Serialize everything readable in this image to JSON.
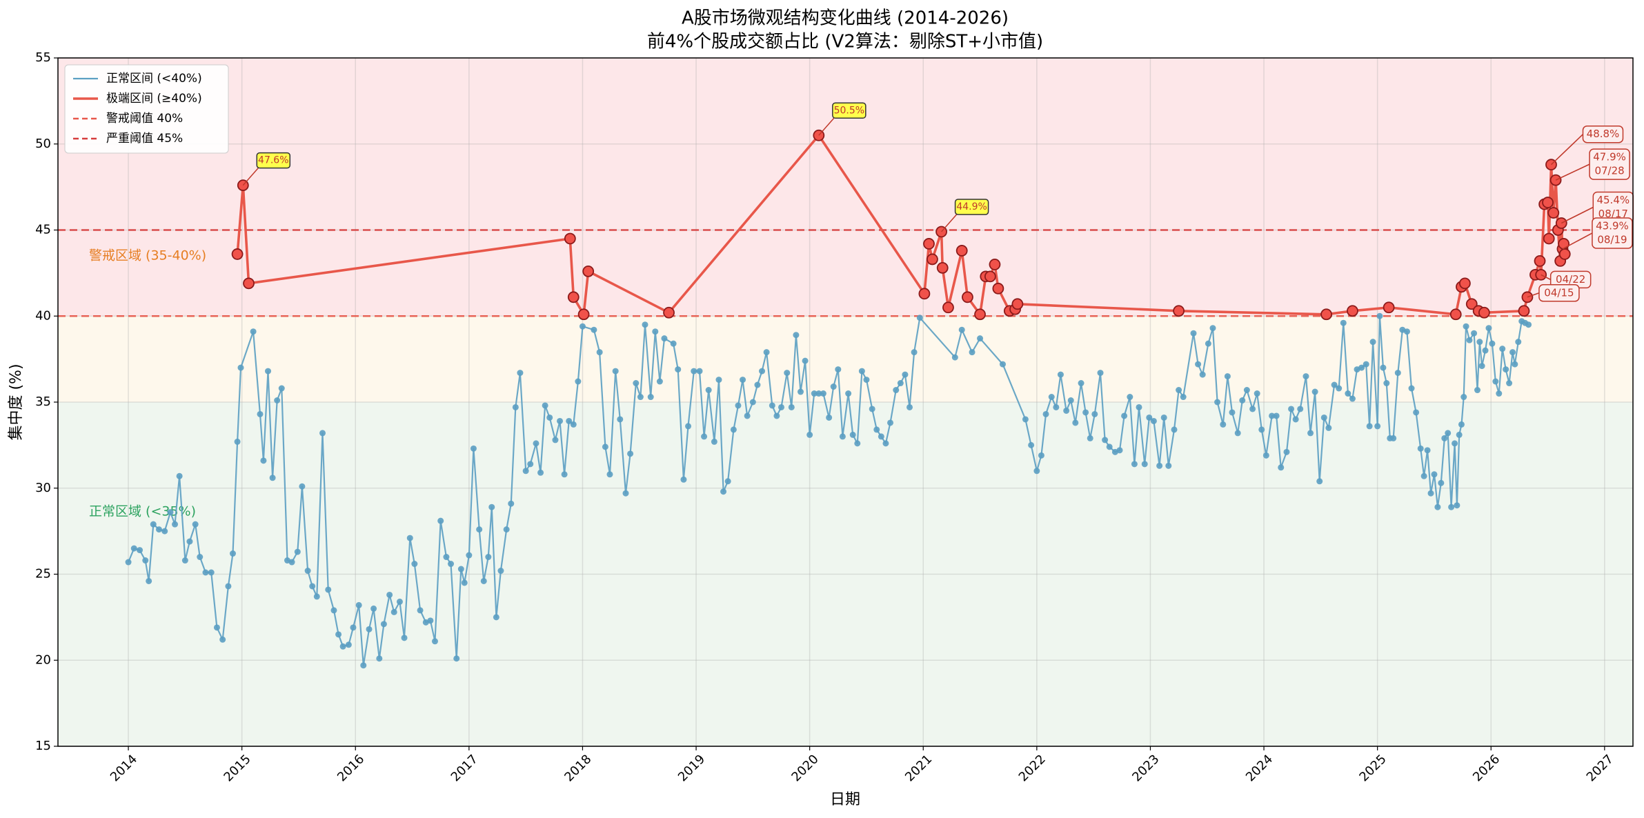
{
  "chart_data": {
    "type": "line",
    "title": "A股市场微观结构变化曲线 (2014-2026)",
    "subtitle": "前4%个股成交额占比 (V2算法：剔除ST+小市值)",
    "x_label": "日期",
    "y_label": "集中度 (%)",
    "xlim": [
      2013.38,
      2027.25
    ],
    "xticks": [
      2014,
      2015,
      2016,
      2017,
      2018,
      2019,
      2020,
      2021,
      2022,
      2023,
      2024,
      2025,
      2026,
      2027
    ],
    "ylim": [
      15,
      55
    ],
    "yticks": [
      15,
      20,
      25,
      30,
      35,
      40,
      45,
      50,
      55
    ],
    "grid": true,
    "legend": "upper-left",
    "bands": [
      {
        "from": 15,
        "to": 35,
        "color": "#eff6ef",
        "label": "正常区域 (<35%)",
        "label_color": "#2ca25f"
      },
      {
        "from": 35,
        "to": 40,
        "color": "#fef8ec",
        "label": "警戒区域 (35-40%)",
        "label_color": "#e67e22"
      },
      {
        "from": 40,
        "to": 55,
        "color": "#fde7e9"
      }
    ],
    "thresholds": [
      {
        "value": 40,
        "label": "警戒阈值 40%",
        "color": "#e8574a"
      },
      {
        "value": 45,
        "label": "严重阈值 45%",
        "color": "#d63c3c"
      }
    ],
    "series": [
      {
        "name": "正常区间 (<40%)",
        "color": "#5b9fc2",
        "x": [
          2014.0,
          2014.05,
          2014.1,
          2014.15,
          2014.18,
          2014.22,
          2014.27,
          2014.32,
          2014.37,
          2014.41,
          2014.45,
          2014.5,
          2014.54,
          2014.59,
          2014.63,
          2014.68,
          2014.73,
          2014.78,
          2014.83,
          2014.88,
          2014.92,
          2014.96,
          2014.99,
          2015.1,
          2015.16,
          2015.19,
          2015.23,
          2015.27,
          2015.31,
          2015.35,
          2015.4,
          2015.44,
          2015.49,
          2015.53,
          2015.58,
          2015.62,
          2015.66,
          2015.71,
          2015.76,
          2015.81,
          2015.85,
          2015.89,
          2015.94,
          2015.98,
          2016.03,
          2016.07,
          2016.12,
          2016.16,
          2016.21,
          2016.25,
          2016.3,
          2016.34,
          2016.39,
          2016.43,
          2016.48,
          2016.52,
          2016.57,
          2016.62,
          2016.66,
          2016.7,
          2016.75,
          2016.8,
          2016.84,
          2016.89,
          2016.93,
          2016.96,
          2017.0,
          2017.04,
          2017.09,
          2017.13,
          2017.17,
          2017.2,
          2017.24,
          2017.28,
          2017.33,
          2017.37,
          2017.41,
          2017.45,
          2017.5,
          2017.54,
          2017.59,
          2017.63,
          2017.67,
          2017.71,
          2017.76,
          2017.8,
          2017.84,
          2017.88,
          2017.92,
          2017.96,
          2018.0,
          2018.1,
          2018.15,
          2018.2,
          2018.24,
          2018.29,
          2018.33,
          2018.38,
          2018.42,
          2018.47,
          2018.51,
          2018.55,
          2018.6,
          2018.64,
          2018.68,
          2018.72,
          2018.8,
          2018.84,
          2018.89,
          2018.93,
          2018.98,
          2019.03,
          2019.07,
          2019.11,
          2019.16,
          2019.2,
          2019.24,
          2019.28,
          2019.33,
          2019.37,
          2019.41,
          2019.45,
          2019.5,
          2019.54,
          2019.58,
          2019.62,
          2019.67,
          2019.71,
          2019.75,
          2019.8,
          2019.84,
          2019.88,
          2019.92,
          2019.96,
          2020.0,
          2020.04,
          2020.08,
          2020.12,
          2020.17,
          2020.21,
          2020.25,
          2020.29,
          2020.34,
          2020.38,
          2020.42,
          2020.46,
          2020.5,
          2020.55,
          2020.59,
          2020.63,
          2020.67,
          2020.71,
          2020.76,
          2020.8,
          2020.84,
          2020.88,
          2020.92,
          2020.97,
          2021.28,
          2021.34,
          2021.43,
          2021.5,
          2021.7,
          2021.9,
          2021.95,
          2022.0,
          2022.04,
          2022.08,
          2022.13,
          2022.17,
          2022.21,
          2022.26,
          2022.3,
          2022.34,
          2022.39,
          2022.43,
          2022.47,
          2022.51,
          2022.56,
          2022.6,
          2022.64,
          2022.69,
          2022.73,
          2022.77,
          2022.82,
          2022.86,
          2022.9,
          2022.95,
          2022.99,
          2023.03,
          2023.08,
          2023.12,
          2023.16,
          2023.21,
          2023.25,
          2023.29,
          2023.38,
          2023.42,
          2023.46,
          2023.51,
          2023.55,
          2023.59,
          2023.64,
          2023.68,
          2023.72,
          2023.77,
          2023.81,
          2023.85,
          2023.9,
          2023.94,
          2023.98,
          2024.02,
          2024.07,
          2024.11,
          2024.15,
          2024.2,
          2024.24,
          2024.28,
          2024.32,
          2024.37,
          2024.41,
          2024.45,
          2024.49,
          2024.53,
          2024.57,
          2024.62,
          2024.66,
          2024.7,
          2024.74,
          2024.78,
          2024.82,
          2024.86,
          2024.9,
          2024.93,
          2024.96,
          2025.0,
          2025.02,
          2025.05,
          2025.08,
          2025.11,
          2025.14,
          2025.18,
          2025.22,
          2025.26,
          2025.3,
          2025.34,
          2025.38,
          2025.41,
          2025.44,
          2025.47,
          2025.5,
          2025.53,
          2025.56,
          2025.59,
          2025.62,
          2025.65,
          2025.68,
          2025.7,
          2025.72,
          2025.74,
          2025.76,
          2025.78,
          2025.81,
          2025.85,
          2025.88,
          2025.9,
          2025.92,
          2025.95,
          2025.98,
          2026.01,
          2026.04,
          2026.07,
          2026.1,
          2026.13,
          2026.16,
          2026.19,
          2026.21,
          2026.24,
          2026.27,
          2026.3,
          2026.33
        ],
        "values": [
          25.7,
          26.5,
          26.4,
          25.8,
          24.6,
          27.9,
          27.6,
          27.5,
          28.6,
          27.9,
          30.7,
          25.8,
          26.9,
          27.9,
          26.0,
          25.1,
          25.1,
          21.9,
          21.2,
          24.3,
          26.2,
          32.7,
          37.0,
          39.1,
          34.3,
          31.6,
          36.8,
          30.6,
          35.1,
          35.8,
          25.8,
          25.7,
          26.3,
          30.1,
          25.2,
          24.3,
          23.7,
          33.2,
          24.1,
          22.9,
          21.5,
          20.8,
          20.9,
          21.9,
          23.2,
          19.7,
          21.8,
          23.0,
          20.1,
          22.1,
          23.8,
          22.8,
          23.4,
          21.3,
          27.1,
          25.6,
          22.9,
          22.2,
          22.3,
          21.1,
          28.1,
          26.0,
          25.6,
          20.1,
          25.3,
          24.5,
          26.1,
          32.3,
          27.6,
          24.6,
          26.0,
          28.9,
          22.5,
          25.2,
          27.6,
          29.1,
          34.7,
          36.7,
          31.0,
          31.4,
          32.6,
          30.9,
          34.8,
          34.1,
          32.8,
          33.9,
          30.8,
          33.9,
          33.7,
          36.2,
          39.4,
          39.2,
          37.9,
          32.4,
          30.8,
          36.8,
          34.0,
          29.7,
          32.0,
          36.1,
          35.3,
          39.5,
          35.3,
          39.1,
          36.2,
          38.7,
          38.4,
          36.9,
          30.5,
          33.6,
          36.8,
          36.8,
          33.0,
          35.7,
          32.7,
          36.3,
          29.8,
          30.4,
          33.4,
          34.8,
          36.3,
          34.2,
          35.0,
          36.0,
          36.8,
          37.9,
          34.8,
          34.2,
          34.7,
          36.7,
          34.7,
          38.9,
          35.6,
          37.4,
          33.1,
          35.5,
          35.5,
          35.5,
          34.1,
          35.9,
          36.9,
          33.0,
          35.5,
          33.1,
          32.6,
          36.8,
          36.3,
          34.6,
          33.4,
          33.0,
          32.6,
          33.8,
          35.7,
          36.1,
          36.6,
          34.7,
          37.9,
          39.9,
          37.6,
          39.2,
          37.9,
          38.7,
          37.2,
          34.0,
          32.5,
          31.0,
          31.9,
          34.3,
          35.3,
          34.7,
          36.6,
          34.5,
          35.1,
          33.8,
          36.1,
          34.4,
          32.9,
          34.3,
          36.7,
          32.8,
          32.4,
          32.1,
          32.2,
          34.2,
          35.3,
          31.4,
          34.7,
          31.4,
          34.1,
          33.9,
          31.3,
          34.1,
          31.3,
          33.4,
          35.7,
          35.3,
          39.0,
          37.2,
          36.6,
          38.4,
          39.3,
          35.0,
          33.7,
          36.5,
          34.4,
          33.2,
          35.1,
          35.7,
          34.6,
          35.5,
          33.4,
          31.9,
          34.2,
          34.2,
          31.2,
          32.1,
          34.6,
          34.0,
          34.6,
          36.5,
          33.2,
          35.6,
          30.4,
          34.1,
          33.5,
          36.0,
          35.8,
          39.6,
          35.5,
          35.2,
          36.9,
          37.0,
          37.2,
          33.6,
          38.5,
          33.6,
          40.0,
          37.0,
          36.1,
          32.9,
          32.9,
          36.7,
          39.2,
          39.1,
          35.8,
          34.4,
          32.3,
          30.7,
          32.2,
          29.7,
          30.8,
          28.9,
          30.3,
          32.9,
          33.2,
          28.9,
          32.6,
          29.0,
          33.1,
          33.7,
          35.3,
          39.4,
          38.6,
          39.0,
          35.7,
          38.5,
          37.1,
          38.0,
          39.3,
          38.4,
          36.2,
          35.5,
          38.1,
          36.9,
          36.1,
          37.9,
          37.2,
          38.5,
          39.7,
          39.6,
          39.5
        ]
      },
      {
        "name": "极端区间 (≥40%)",
        "color": "#e8574a",
        "marker_color": "#f0524a",
        "marker_edge": "#8b1a1a",
        "x": [
          2014.96,
          2015.01,
          2015.06,
          2017.89,
          2017.92,
          2018.01,
          2018.05,
          2018.76,
          2020.08,
          2021.01,
          2021.05,
          2021.08,
          2021.16,
          2021.17,
          2021.22,
          2021.34,
          2021.39,
          2021.5,
          2021.55,
          2021.59,
          2021.63,
          2021.66,
          2021.76,
          2021.81,
          2021.83,
          2023.25,
          2024.55,
          2024.78,
          2025.1,
          2025.69,
          2025.74,
          2025.77,
          2025.83,
          2025.89,
          2025.94,
          2026.29,
          2026.32,
          2026.39,
          2026.43,
          2026.44,
          2026.47,
          2026.5,
          2026.51,
          2026.53,
          2026.55,
          2026.57,
          2026.59,
          2026.61,
          2026.62,
          2026.63,
          2026.64,
          2026.65
        ],
        "values": [
          43.6,
          47.6,
          41.9,
          44.5,
          41.1,
          40.1,
          42.6,
          40.2,
          50.5,
          41.3,
          44.2,
          43.3,
          44.9,
          42.8,
          40.5,
          43.8,
          41.1,
          40.1,
          42.3,
          42.3,
          43.0,
          41.6,
          40.3,
          40.4,
          40.7,
          40.3,
          40.1,
          40.3,
          40.5,
          40.1,
          41.7,
          41.9,
          40.7,
          40.3,
          40.2,
          40.3,
          41.1,
          42.4,
          43.2,
          42.4,
          46.5,
          46.6,
          44.5,
          48.8,
          46.0,
          47.9,
          45.0,
          43.2,
          45.4,
          43.9,
          44.2,
          43.6
        ]
      }
    ],
    "annotations": [
      {
        "style": "highlight",
        "text": [
          "47.6%"
        ],
        "x": 2015.01,
        "y": 47.6
      },
      {
        "style": "highlight",
        "text": [
          "50.5%"
        ],
        "x": 2020.08,
        "y": 50.5
      },
      {
        "style": "highlight",
        "text": [
          "44.9%"
        ],
        "x": 2021.16,
        "y": 44.9
      },
      {
        "style": "callout",
        "text": [
          "48.8%"
        ],
        "x": 2026.53,
        "y": 48.8
      },
      {
        "style": "callout",
        "text": [
          "47.9%",
          "07/28"
        ],
        "x": 2026.57,
        "y": 47.9
      },
      {
        "style": "callout",
        "text": [
          "45.4%",
          "08/17"
        ],
        "x": 2026.62,
        "y": 45.4
      },
      {
        "style": "callout",
        "text": [
          "43.9%",
          "08/19"
        ],
        "x": 2026.63,
        "y": 43.9
      },
      {
        "style": "callout",
        "text": [
          "04/22"
        ],
        "x": 2026.44,
        "y": 42.4
      },
      {
        "style": "callout",
        "text": [
          "04/15"
        ],
        "x": 2026.32,
        "y": 41.1
      }
    ]
  }
}
